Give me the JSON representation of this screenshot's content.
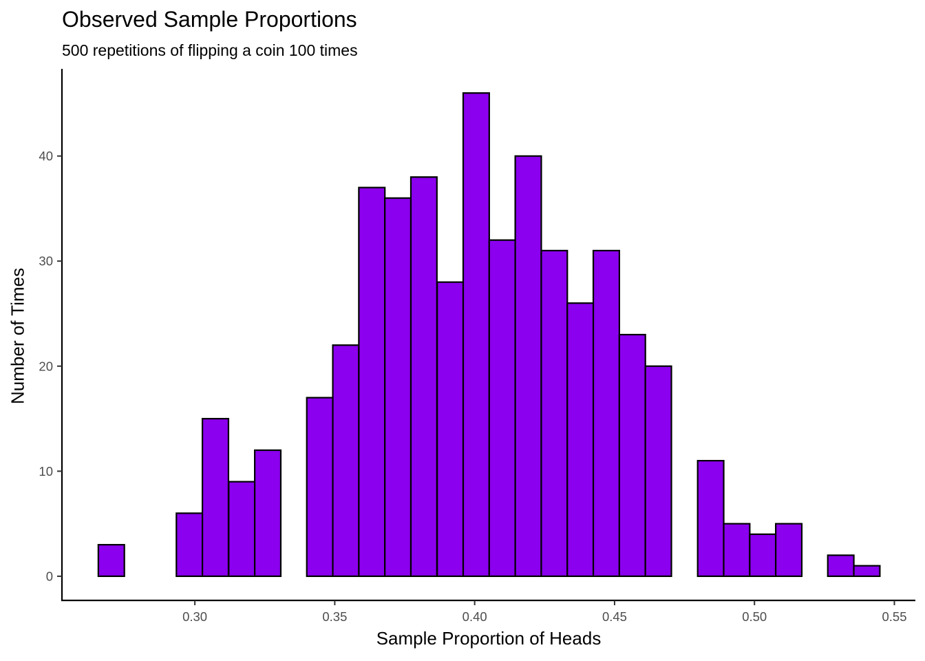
{
  "chart_data": {
    "type": "bar",
    "subtype": "histogram",
    "title": "Observed Sample Proportions",
    "subtitle": "500 repetitions of flipping a coin 100 times",
    "xlabel": "Sample Proportion of Heads",
    "ylabel": "Number of Times",
    "xlim": [
      0.2525,
      0.5575
    ],
    "ylim": [
      -2.3,
      48.3
    ],
    "x_ticks": [
      "0.30",
      "0.35",
      "0.40",
      "0.45",
      "0.50",
      "0.55"
    ],
    "y_ticks": [
      "0",
      "10",
      "20",
      "30",
      "40"
    ],
    "bin_width": 0.00931,
    "bins_start": [
      0.2655,
      0.2748,
      0.2841,
      0.2934,
      0.3027,
      0.3121,
      0.3214,
      0.3307,
      0.34,
      0.3493,
      0.3586,
      0.3679,
      0.3772,
      0.3866,
      0.3959,
      0.4052,
      0.4145,
      0.4238,
      0.4331,
      0.4424,
      0.4517,
      0.461,
      0.4703,
      0.4797,
      0.489,
      0.4983,
      0.5076,
      0.5169,
      0.5262,
      0.5355
    ],
    "values": [
      3,
      0,
      0,
      6,
      15,
      9,
      12,
      0,
      17,
      22,
      37,
      36,
      38,
      28,
      46,
      32,
      40,
      31,
      26,
      31,
      23,
      20,
      0,
      11,
      5,
      4,
      5,
      0,
      2,
      1
    ],
    "fill_color": "#8B00EE",
    "outline_color": "#000000",
    "grid": false,
    "legend": "none"
  }
}
